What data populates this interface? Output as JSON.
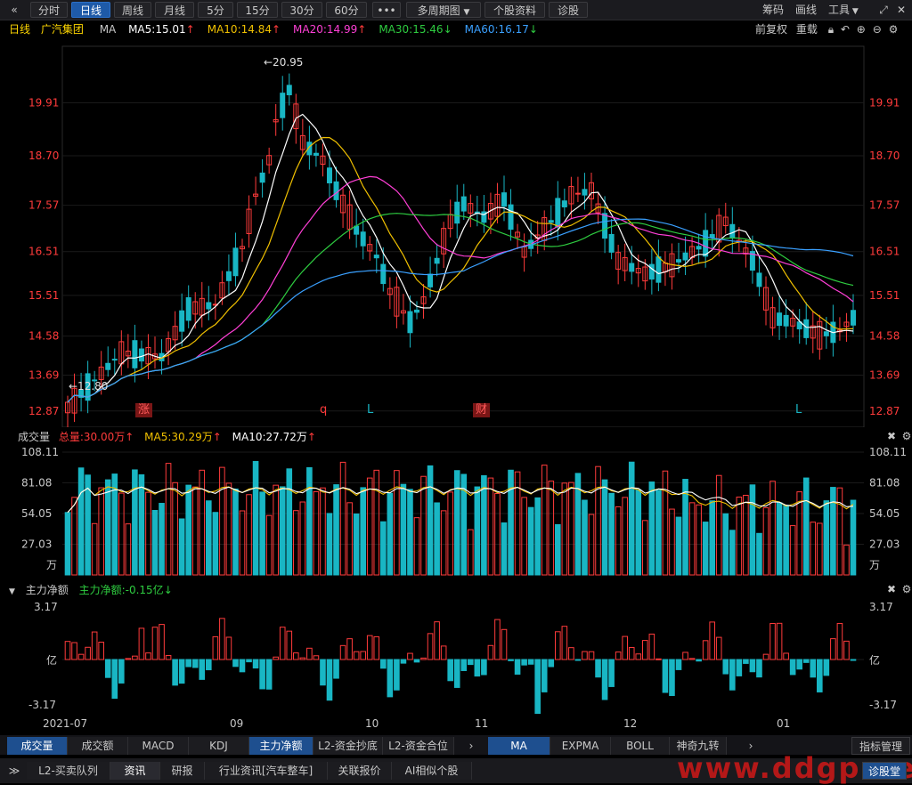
{
  "toolbar": {
    "collapse_icon": "«",
    "periods": [
      "分时",
      "日线",
      "周线",
      "月线",
      "5分",
      "15分",
      "30分",
      "60分"
    ],
    "more": "•••",
    "multi_period": "多周期图",
    "stock_info": "个股资料",
    "diagnose": "诊股",
    "right": [
      "筹码",
      "画线",
      "工具"
    ]
  },
  "main_legend": {
    "period": "日线",
    "stock": "广汽集团",
    "ma": "MA",
    "items": [
      {
        "label": "MA5:15.01",
        "arrow": "↑",
        "color": "#ffffff"
      },
      {
        "label": "MA10:14.84",
        "arrow": "↑",
        "color": "#f0c000"
      },
      {
        "label": "MA20:14.99",
        "arrow": "↑",
        "color": "#ff3fd6"
      },
      {
        "label": "MA30:15.46",
        "arrow": "↓",
        "color": "#2ecc40"
      },
      {
        "label": "MA60:16.17",
        "arrow": "↓",
        "color": "#3aa0ff"
      }
    ],
    "right": [
      "前复权",
      "重载"
    ]
  },
  "price_axis": {
    "ticks": [
      "19.91",
      "18.70",
      "17.57",
      "16.51",
      "15.51",
      "14.58",
      "13.69",
      "12.87"
    ],
    "ylim": [
      12.5,
      21.2
    ]
  },
  "price_labels": {
    "high": "←20.95",
    "low": "←12.80"
  },
  "event_markers": [
    {
      "text": "涨",
      "type": "box",
      "x": 88
    },
    {
      "text": "q",
      "type": "text",
      "x": 292
    },
    {
      "text": "L",
      "type": "text",
      "x": 345
    },
    {
      "text": "财",
      "type": "box",
      "x": 467
    },
    {
      "text": "L",
      "type": "text",
      "x": 826
    }
  ],
  "volume_legend": {
    "title": "成交量",
    "total": "总量:30.00万",
    "total_arrow": "↑",
    "ma5": "MA5:30.29万",
    "ma5_arrow": "↑",
    "ma10": "MA10:27.72万",
    "ma10_arrow": "↑"
  },
  "volume_axis": {
    "ticks": [
      "108.11",
      "81.08",
      "54.05",
      "27.03"
    ],
    "unit": "万",
    "ymax": 108.11
  },
  "net_legend": {
    "title": "主力净额",
    "value": "主力净额:-0.15亿",
    "arrow": "↓"
  },
  "net_axis": {
    "top": "3.17",
    "mid": "亿",
    "bottom": "-3.17"
  },
  "date_axis": [
    "2021-07",
    "09",
    "10",
    "11",
    "12",
    "01"
  ],
  "indicator_tabs": [
    "成交量",
    "成交额",
    "MACD",
    "KDJ",
    "主力净额",
    "L2-资金抄底",
    "L2-资金合位"
  ],
  "ma_tabs": [
    "MA",
    "EXPMA",
    "BOLL",
    "神奇九转"
  ],
  "indicator_manage": "指标管理",
  "bottom_tabs": [
    "L2-买卖队列",
    "资讯",
    "研报",
    "行业资讯[汽车整车]",
    "关联报价",
    "AI相似个股"
  ],
  "bottom_right": "诊股堂",
  "watermark": "www.ddgp.net",
  "colors": {
    "up": "#ff3b3b",
    "down": "#19b6c4",
    "bg": "#000000",
    "accent": "#1e5aa8"
  }
}
